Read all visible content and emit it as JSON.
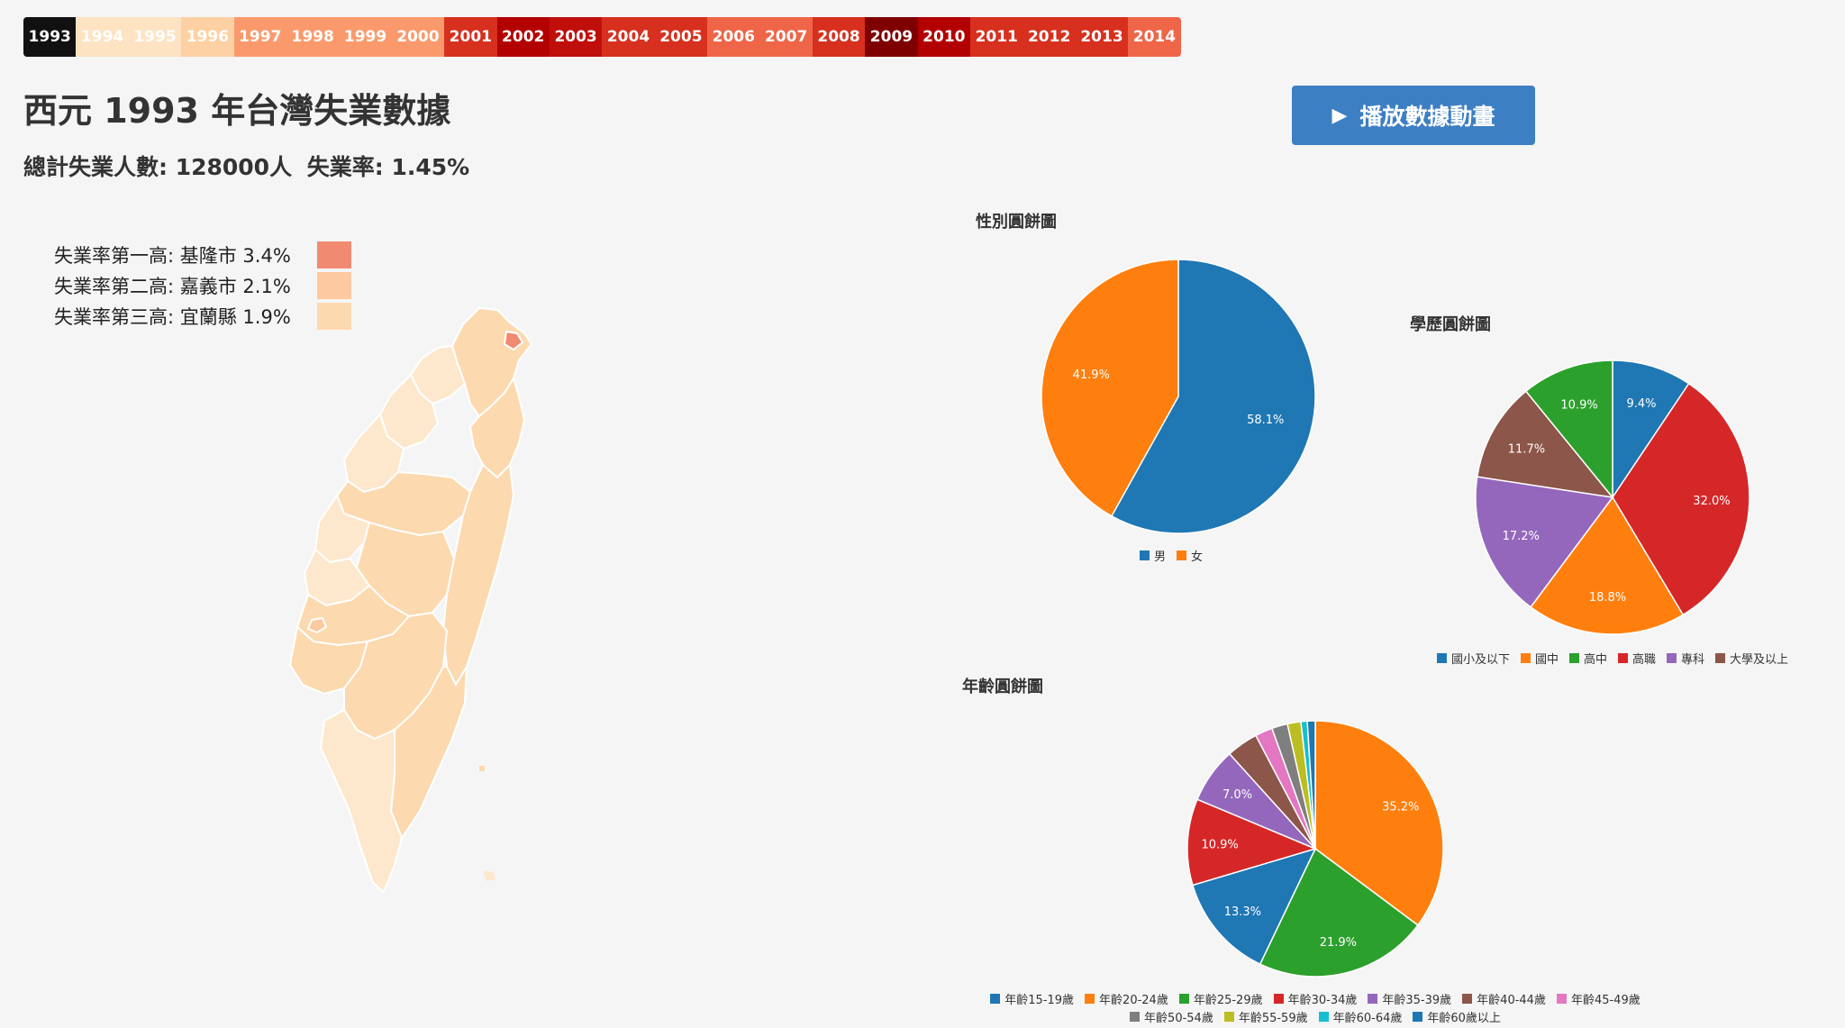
{
  "year_selector": {
    "years": [
      {
        "label": "1993",
        "color": "#111111"
      },
      {
        "label": "1994",
        "color": "#fde3c2"
      },
      {
        "label": "1995",
        "color": "#fde3c2"
      },
      {
        "label": "1996",
        "color": "#fdd1a3"
      },
      {
        "label": "1997",
        "color": "#fa9a6c"
      },
      {
        "label": "1998",
        "color": "#fa9a6c"
      },
      {
        "label": "1999",
        "color": "#fa9a6c"
      },
      {
        "label": "2000",
        "color": "#fa9a6c"
      },
      {
        "label": "2001",
        "color": "#d7301f"
      },
      {
        "label": "2002",
        "color": "#b30000"
      },
      {
        "label": "2003",
        "color": "#c00f0b"
      },
      {
        "label": "2004",
        "color": "#d7301f"
      },
      {
        "label": "2005",
        "color": "#d7301f"
      },
      {
        "label": "2006",
        "color": "#ef6548"
      },
      {
        "label": "2007",
        "color": "#ef6548"
      },
      {
        "label": "2008",
        "color": "#d7301f"
      },
      {
        "label": "2009",
        "color": "#7f0000"
      },
      {
        "label": "2010",
        "color": "#b30000"
      },
      {
        "label": "2011",
        "color": "#d7301f"
      },
      {
        "label": "2012",
        "color": "#d7301f"
      },
      {
        "label": "2013",
        "color": "#d7301f"
      },
      {
        "label": "2014",
        "color": "#ef6548"
      }
    ]
  },
  "header": {
    "title": "西元 1993 年台灣失業數據",
    "total_unemployed": "總計失業人數: 128000人",
    "unemployment_rate": "失業率: 1.45%"
  },
  "play_button": {
    "icon": "play-icon",
    "label": "播放數據動畫"
  },
  "ranking_legend": [
    {
      "label": "失業率第一高: 基隆市 3.4%",
      "color": "#f08a70"
    },
    {
      "label": "失業率第二高: 嘉義市 2.1%",
      "color": "#fdc9a0"
    },
    {
      "label": "失業率第三高: 宜蘭縣 1.9%",
      "color": "#fdd9b0"
    }
  ],
  "map_colors": {
    "base": "#fcd9ae",
    "light": "#fde8cd",
    "highlight": "#f08a70"
  },
  "chart_data": [
    {
      "type": "pie",
      "title": "性別圓餅圖",
      "categories": [
        "男",
        "女"
      ],
      "values": [
        58.1,
        41.9
      ],
      "labels": [
        "58.1%",
        "41.9%"
      ],
      "colors": [
        "#1f77b4",
        "#ff7f0e"
      ]
    },
    {
      "type": "pie",
      "title": "學歷圓餅圖",
      "categories": [
        "國小及以下",
        "國中",
        "高中",
        "高職",
        "專科",
        "大學及以上"
      ],
      "values": [
        9.4,
        18.8,
        10.9,
        32.0,
        17.2,
        11.7
      ],
      "labels": [
        "9.4%",
        "18.8%",
        "10.9%",
        "32.0%",
        "17.2%",
        "11.7%"
      ],
      "legend_order": [
        "國小及以下",
        "國中",
        "高中",
        "高職",
        "專科",
        "大學及以上"
      ],
      "slice_order": [
        "國小及以下",
        "高職",
        "國中",
        "專科",
        "大學及以上",
        "高中"
      ],
      "colors": {
        "國小及以下": "#1f77b4",
        "國中": "#ff7f0e",
        "高中": "#2ca02c",
        "高職": "#d62728",
        "專科": "#9467bd",
        "大學及以上": "#8c564b"
      }
    },
    {
      "type": "pie",
      "title": "年齡圓餅圖",
      "categories": [
        "年齡15-19歲",
        "年齡20-24歲",
        "年齡25-29歲",
        "年齡30-34歲",
        "年齡35-39歲",
        "年齡40-44歲",
        "年齡45-49歲",
        "年齡50-54歲",
        "年齡55-59歲",
        "年齡60-64歲",
        "年齡60歲以上"
      ],
      "values": [
        13.3,
        35.2,
        21.9,
        10.9,
        7.0,
        4.0,
        2.2,
        2.0,
        1.7,
        0.8,
        1.0
      ],
      "labels": [
        "13.3%",
        "35.2%",
        "21.9%",
        "10.9%",
        "7.0%",
        "",
        "",
        "",
        "",
        "",
        ""
      ],
      "slice_order": [
        "年齡20-24歲",
        "年齡25-29歲",
        "年齡15-19歲",
        "年齡30-34歲",
        "年齡35-39歲",
        "年齡40-44歲",
        "年齡45-49歲",
        "年齡50-54歲",
        "年齡55-59歲",
        "年齡60-64歲",
        "年齡60歲以上"
      ],
      "colors": [
        "#1f77b4",
        "#ff7f0e",
        "#2ca02c",
        "#d62728",
        "#9467bd",
        "#8c564b",
        "#e377c2",
        "#7f7f7f",
        "#bcbd22",
        "#17becf",
        "#1f77b4"
      ]
    }
  ]
}
